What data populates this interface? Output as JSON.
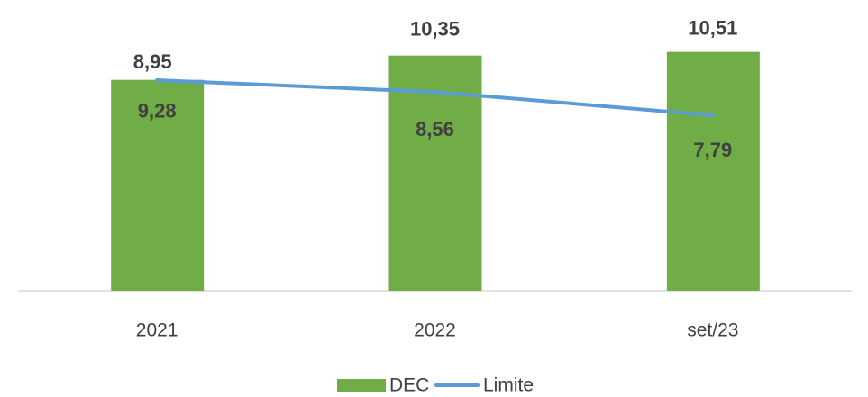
{
  "chart_data": {
    "type": "bar",
    "categories": [
      "2021",
      "2022",
      "set/23"
    ],
    "series": [
      {
        "name": "DEC",
        "color": "#70ad47",
        "values": [
          9.28,
          10.35,
          10.51
        ],
        "value_labels": [
          "9,28",
          "10,35",
          "10,51"
        ]
      },
      {
        "name": "Limite",
        "type": "line",
        "axis": "y2",
        "color": "#5b9bd5",
        "values": [
          8.95,
          8.56,
          7.79
        ],
        "value_labels": [
          "8,95",
          "8,56",
          "7,79"
        ]
      }
    ],
    "ylim": [
      0,
      12
    ],
    "y2lim": [
      2,
      11
    ],
    "legend": "bottom"
  }
}
